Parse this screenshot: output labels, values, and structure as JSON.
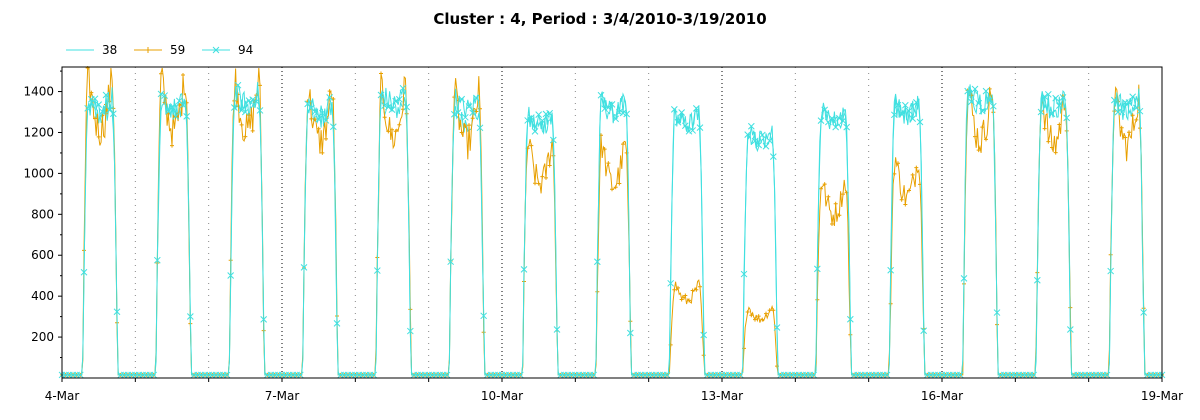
{
  "chart_data": {
    "type": "line",
    "title": "Cluster : 4, Period : 3/4/2010-3/19/2010",
    "xlabel": "",
    "ylabel": "",
    "x_tick_labels": [
      "4-Mar",
      "7-Mar",
      "10-Mar",
      "13-Mar",
      "16-Mar",
      "19-Mar"
    ],
    "xlim_days": [
      4,
      19
    ],
    "ylim": [
      0,
      1520
    ],
    "y_ticks": [
      200,
      400,
      600,
      800,
      1000,
      1200,
      1400
    ],
    "grid": "dotted vertical at day boundaries",
    "legend_placement": "top-left",
    "series": [
      {
        "name": "38",
        "color": "#40e0e0",
        "marker": "none",
        "days": [
          {
            "day": 4,
            "peak": 1330
          },
          {
            "day": 5,
            "peak": 1350
          },
          {
            "day": 6,
            "peak": 1370
          },
          {
            "day": 7,
            "peak": 1320
          },
          {
            "day": 8,
            "peak": 1360
          },
          {
            "day": 9,
            "peak": 1300
          },
          {
            "day": 10,
            "peak": 1280
          },
          {
            "day": 11,
            "peak": 1350
          },
          {
            "day": 12,
            "peak": 1290
          },
          {
            "day": 13,
            "peak": 1200
          },
          {
            "day": 14,
            "peak": 1300
          },
          {
            "day": 15,
            "peak": 1340
          },
          {
            "day": 16,
            "peak": 1390
          },
          {
            "day": 17,
            "peak": 1370
          },
          {
            "day": 18,
            "peak": 1360
          }
        ]
      },
      {
        "name": "59",
        "color": "#e8a000",
        "marker": "+",
        "days": [
          {
            "day": 4,
            "peak": 1480
          },
          {
            "day": 5,
            "peak": 1480
          },
          {
            "day": 6,
            "peak": 1470
          },
          {
            "day": 7,
            "peak": 1410
          },
          {
            "day": 8,
            "peak": 1430
          },
          {
            "day": 9,
            "peak": 1400
          },
          {
            "day": 10,
            "peak": 1160
          },
          {
            "day": 11,
            "peak": 1150
          },
          {
            "day": 12,
            "peak": 460
          },
          {
            "day": 13,
            "peak": 350
          },
          {
            "day": 14,
            "peak": 970
          },
          {
            "day": 15,
            "peak": 1080
          },
          {
            "day": 16,
            "peak": 1420
          },
          {
            "day": 17,
            "peak": 1390
          },
          {
            "day": 18,
            "peak": 1390
          }
        ]
      },
      {
        "name": "94",
        "color": "#40e0e0",
        "marker": "x",
        "days": [
          {
            "day": 4,
            "peak": 1380
          },
          {
            "day": 5,
            "peak": 1370
          },
          {
            "day": 6,
            "peak": 1400
          },
          {
            "day": 7,
            "peak": 1350
          },
          {
            "day": 8,
            "peak": 1400
          },
          {
            "day": 9,
            "peak": 1370
          },
          {
            "day": 10,
            "peak": 1290
          },
          {
            "day": 11,
            "peak": 1360
          },
          {
            "day": 12,
            "peak": 1290
          },
          {
            "day": 13,
            "peak": 1210
          },
          {
            "day": 14,
            "peak": 1310
          },
          {
            "day": 15,
            "peak": 1340
          },
          {
            "day": 16,
            "peak": 1410
          },
          {
            "day": 17,
            "peak": 1380
          },
          {
            "day": 18,
            "peak": 1370
          }
        ]
      }
    ]
  }
}
